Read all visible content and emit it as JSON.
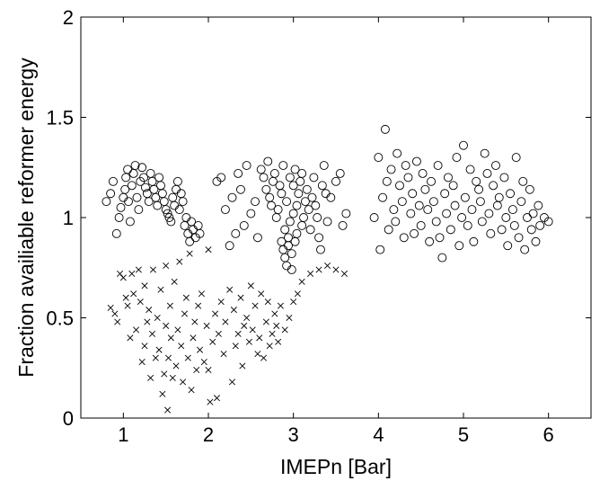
{
  "chart_data": {
    "type": "scatter",
    "title": "",
    "xlabel": "IMEPn [Bar]",
    "ylabel": "Fraction availiable reformer energy",
    "xlim": [
      0.5,
      6.5
    ],
    "ylim": [
      0,
      2
    ],
    "xticks": [
      1,
      2,
      3,
      4,
      5,
      6
    ],
    "yticks": [
      0,
      0.5,
      1,
      1.5,
      2
    ],
    "xtick_labels": [
      "1",
      "2",
      "3",
      "4",
      "5",
      "6"
    ],
    "ytick_labels": [
      "0",
      "0.5",
      "1",
      "1.5",
      "2"
    ],
    "grid": false,
    "legend": "none",
    "series": [
      {
        "marker": "circle",
        "points": [
          [
            0.8,
            1.08
          ],
          [
            0.85,
            1.12
          ],
          [
            0.88,
            1.18
          ],
          [
            0.92,
            0.92
          ],
          [
            0.95,
            1.0
          ],
          [
            0.97,
            1.05
          ],
          [
            1.0,
            1.1
          ],
          [
            1.02,
            1.14
          ],
          [
            1.03,
            1.2
          ],
          [
            1.05,
            1.24
          ],
          [
            1.06,
            1.08
          ],
          [
            1.08,
            0.98
          ],
          [
            1.1,
            1.16
          ],
          [
            1.12,
            1.22
          ],
          [
            1.14,
            1.26
          ],
          [
            1.16,
            1.1
          ],
          [
            1.18,
            1.04
          ],
          [
            1.2,
            1.18
          ],
          [
            1.22,
            1.25
          ],
          [
            1.24,
            1.2
          ],
          [
            1.26,
            1.15
          ],
          [
            1.28,
            1.12
          ],
          [
            1.3,
            1.08
          ],
          [
            1.32,
            1.22
          ],
          [
            1.34,
            1.18
          ],
          [
            1.36,
            1.14
          ],
          [
            1.38,
            1.1
          ],
          [
            1.4,
            1.06
          ],
          [
            1.42,
            1.2
          ],
          [
            1.44,
            1.16
          ],
          [
            1.46,
            1.12
          ],
          [
            1.48,
            1.08
          ],
          [
            1.5,
            1.04
          ],
          [
            1.52,
            1.02
          ],
          [
            1.54,
            1.0
          ],
          [
            1.56,
            0.98
          ],
          [
            1.58,
            1.1
          ],
          [
            1.6,
            1.06
          ],
          [
            1.62,
            1.14
          ],
          [
            1.64,
            1.18
          ],
          [
            1.66,
            1.04
          ],
          [
            1.68,
            1.12
          ],
          [
            1.7,
            1.08
          ],
          [
            1.72,
            0.96
          ],
          [
            1.74,
            1.0
          ],
          [
            1.76,
            0.92
          ],
          [
            1.78,
            0.88
          ],
          [
            1.8,
            0.98
          ],
          [
            1.82,
            0.94
          ],
          [
            1.85,
            0.9
          ],
          [
            1.88,
            0.96
          ],
          [
            1.9,
            0.92
          ],
          [
            2.1,
            1.18
          ],
          [
            2.15,
            1.2
          ],
          [
            2.2,
            1.04
          ],
          [
            2.25,
            0.86
          ],
          [
            2.28,
            1.1
          ],
          [
            2.32,
            0.92
          ],
          [
            2.35,
            1.22
          ],
          [
            2.38,
            1.14
          ],
          [
            2.42,
            0.96
          ],
          [
            2.45,
            1.26
          ],
          [
            2.5,
            1.02
          ],
          [
            2.55,
            1.08
          ],
          [
            2.58,
            0.9
          ],
          [
            2.62,
            1.24
          ],
          [
            2.65,
            1.2
          ],
          [
            2.68,
            1.14
          ],
          [
            2.7,
            1.28
          ],
          [
            2.72,
            1.1
          ],
          [
            2.74,
            1.06
          ],
          [
            2.76,
            1.18
          ],
          [
            2.78,
            1.22
          ],
          [
            2.8,
            1.0
          ],
          [
            2.82,
            1.04
          ],
          [
            2.84,
            1.16
          ],
          [
            2.86,
            1.12
          ],
          [
            2.86,
            0.88
          ],
          [
            2.88,
            0.84
          ],
          [
            2.88,
            1.26
          ],
          [
            2.9,
            0.8
          ],
          [
            2.9,
            0.94
          ],
          [
            2.92,
            0.76
          ],
          [
            2.92,
            1.08
          ],
          [
            2.94,
            0.86
          ],
          [
            2.94,
            0.9
          ],
          [
            2.96,
            1.2
          ],
          [
            2.96,
            0.98
          ],
          [
            2.98,
            0.74
          ],
          [
            2.98,
            0.82
          ],
          [
            3.0,
            1.16
          ],
          [
            3.0,
            1.02
          ],
          [
            3.02,
            0.88
          ],
          [
            3.02,
            1.24
          ],
          [
            3.04,
            1.06
          ],
          [
            3.04,
            0.92
          ],
          [
            3.06,
            1.12
          ],
          [
            3.08,
            1.18
          ],
          [
            3.1,
            1.22
          ],
          [
            3.1,
            0.96
          ],
          [
            3.12,
            1.0
          ],
          [
            3.14,
            1.08
          ],
          [
            3.16,
            1.14
          ],
          [
            3.18,
            1.04
          ],
          [
            3.2,
            0.94
          ],
          [
            3.22,
            1.1
          ],
          [
            3.24,
            1.2
          ],
          [
            3.26,
            1.06
          ],
          [
            3.28,
            1.0
          ],
          [
            3.3,
            0.9
          ],
          [
            3.32,
            0.84
          ],
          [
            3.34,
            1.16
          ],
          [
            3.36,
            1.26
          ],
          [
            3.38,
            1.12
          ],
          [
            3.4,
            0.98
          ],
          [
            3.44,
            1.1
          ],
          [
            3.5,
            1.18
          ],
          [
            3.55,
            1.22
          ],
          [
            3.58,
            0.96
          ],
          [
            3.62,
            1.02
          ],
          [
            3.95,
            1.0
          ],
          [
            4.0,
            1.3
          ],
          [
            4.02,
            0.84
          ],
          [
            4.05,
            1.1
          ],
          [
            4.08,
            1.44
          ],
          [
            4.1,
            1.18
          ],
          [
            4.12,
            0.94
          ],
          [
            4.15,
            1.24
          ],
          [
            4.18,
            1.04
          ],
          [
            4.2,
            0.98
          ],
          [
            4.22,
            1.32
          ],
          [
            4.25,
            1.16
          ],
          [
            4.28,
            1.08
          ],
          [
            4.3,
            0.9
          ],
          [
            4.32,
            1.26
          ],
          [
            4.35,
            1.2
          ],
          [
            4.38,
            1.02
          ],
          [
            4.4,
            1.12
          ],
          [
            4.42,
            0.92
          ],
          [
            4.45,
            1.28
          ],
          [
            4.48,
            1.06
          ],
          [
            4.5,
            0.96
          ],
          [
            4.52,
            1.22
          ],
          [
            4.55,
            1.14
          ],
          [
            4.58,
            1.04
          ],
          [
            4.6,
            0.88
          ],
          [
            4.62,
            1.18
          ],
          [
            4.65,
            1.08
          ],
          [
            4.68,
            0.98
          ],
          [
            4.7,
            1.26
          ],
          [
            4.72,
            0.9
          ],
          [
            4.75,
            0.8
          ],
          [
            4.78,
            1.12
          ],
          [
            4.8,
            1.02
          ],
          [
            4.82,
            1.2
          ],
          [
            4.85,
            0.94
          ],
          [
            4.88,
            1.16
          ],
          [
            4.9,
            1.06
          ],
          [
            4.92,
            1.3
          ],
          [
            4.95,
            0.86
          ],
          [
            4.98,
            1.0
          ],
          [
            5.0,
            1.36
          ],
          [
            5.02,
            1.1
          ],
          [
            5.05,
            0.96
          ],
          [
            5.08,
            1.24
          ],
          [
            5.1,
            1.04
          ],
          [
            5.12,
            0.88
          ],
          [
            5.15,
            1.18
          ],
          [
            5.18,
            1.14
          ],
          [
            5.2,
            1.08
          ],
          [
            5.22,
            0.98
          ],
          [
            5.25,
            1.32
          ],
          [
            5.28,
            1.22
          ],
          [
            5.3,
            1.02
          ],
          [
            5.32,
            0.92
          ],
          [
            5.35,
            1.16
          ],
          [
            5.38,
            1.26
          ],
          [
            5.4,
            1.06
          ],
          [
            5.42,
            1.1
          ],
          [
            5.45,
            0.94
          ],
          [
            5.48,
            1.2
          ],
          [
            5.5,
            1.0
          ],
          [
            5.52,
            0.86
          ],
          [
            5.55,
            1.12
          ],
          [
            5.58,
            1.04
          ],
          [
            5.6,
            0.96
          ],
          [
            5.62,
            1.3
          ],
          [
            5.65,
            0.9
          ],
          [
            5.68,
            1.08
          ],
          [
            5.7,
            1.18
          ],
          [
            5.72,
            0.84
          ],
          [
            5.75,
            1.0
          ],
          [
            5.78,
            1.14
          ],
          [
            5.8,
            0.94
          ],
          [
            5.82,
            1.02
          ],
          [
            5.85,
            0.88
          ],
          [
            5.88,
            1.06
          ],
          [
            5.9,
            0.96
          ],
          [
            5.95,
            1.0
          ],
          [
            6.0,
            0.98
          ]
        ]
      },
      {
        "marker": "x",
        "points": [
          [
            0.85,
            0.55
          ],
          [
            0.9,
            0.52
          ],
          [
            0.93,
            0.48
          ],
          [
            0.96,
            0.72
          ],
          [
            1.0,
            0.7
          ],
          [
            1.03,
            0.6
          ],
          [
            1.05,
            0.56
          ],
          [
            1.08,
            0.4
          ],
          [
            1.1,
            0.72
          ],
          [
            1.12,
            0.62
          ],
          [
            1.15,
            0.44
          ],
          [
            1.18,
            0.74
          ],
          [
            1.2,
            0.58
          ],
          [
            1.22,
            0.28
          ],
          [
            1.25,
            0.36
          ],
          [
            1.25,
            0.66
          ],
          [
            1.28,
            0.48
          ],
          [
            1.3,
            0.54
          ],
          [
            1.32,
            0.2
          ],
          [
            1.34,
            0.42
          ],
          [
            1.35,
            0.74
          ],
          [
            1.38,
            0.3
          ],
          [
            1.4,
            0.5
          ],
          [
            1.42,
            0.34
          ],
          [
            1.44,
            0.64
          ],
          [
            1.46,
            0.12
          ],
          [
            1.48,
            0.22
          ],
          [
            1.5,
            0.46
          ],
          [
            1.5,
            0.76
          ],
          [
            1.52,
            0.04
          ],
          [
            1.53,
            0.3
          ],
          [
            1.55,
            0.56
          ],
          [
            1.56,
            0.4
          ],
          [
            1.58,
            0.2
          ],
          [
            1.6,
            0.68
          ],
          [
            1.62,
            0.26
          ],
          [
            1.64,
            0.44
          ],
          [
            1.66,
            0.78
          ],
          [
            1.68,
            0.36
          ],
          [
            1.7,
            0.18
          ],
          [
            1.72,
            0.52
          ],
          [
            1.74,
            0.6
          ],
          [
            1.76,
            0.3
          ],
          [
            1.78,
            0.82
          ],
          [
            1.8,
            0.14
          ],
          [
            1.82,
            0.4
          ],
          [
            1.84,
            0.48
          ],
          [
            1.86,
            0.24
          ],
          [
            1.88,
            0.56
          ],
          [
            1.9,
            0.34
          ],
          [
            1.92,
            0.62
          ],
          [
            1.95,
            0.28
          ],
          [
            1.98,
            0.46
          ],
          [
            2.0,
            0.24
          ],
          [
            2.0,
            0.84
          ],
          [
            2.02,
            0.08
          ],
          [
            2.05,
            0.38
          ],
          [
            2.08,
            0.52
          ],
          [
            2.1,
            0.1
          ],
          [
            2.12,
            0.42
          ],
          [
            2.15,
            0.58
          ],
          [
            2.18,
            0.32
          ],
          [
            2.2,
            0.48
          ],
          [
            2.25,
            0.64
          ],
          [
            2.28,
            0.18
          ],
          [
            2.3,
            0.54
          ],
          [
            2.32,
            0.36
          ],
          [
            2.35,
            0.42
          ],
          [
            2.38,
            0.6
          ],
          [
            2.4,
            0.26
          ],
          [
            2.42,
            0.46
          ],
          [
            2.45,
            0.5
          ],
          [
            2.48,
            0.38
          ],
          [
            2.5,
            0.66
          ],
          [
            2.52,
            0.44
          ],
          [
            2.55,
            0.56
          ],
          [
            2.58,
            0.32
          ],
          [
            2.6,
            0.4
          ],
          [
            2.62,
            0.62
          ],
          [
            2.65,
            0.3
          ],
          [
            2.68,
            0.48
          ],
          [
            2.7,
            0.58
          ],
          [
            2.72,
            0.36
          ],
          [
            2.75,
            0.42
          ],
          [
            2.78,
            0.52
          ],
          [
            2.8,
            0.46
          ],
          [
            2.82,
            0.38
          ],
          [
            2.85,
            0.56
          ],
          [
            2.9,
            0.44
          ],
          [
            2.95,
            0.5
          ],
          [
            3.0,
            0.58
          ],
          [
            3.05,
            0.62
          ],
          [
            3.1,
            0.68
          ],
          [
            3.2,
            0.72
          ],
          [
            3.3,
            0.74
          ],
          [
            3.4,
            0.76
          ],
          [
            3.5,
            0.74
          ],
          [
            3.6,
            0.72
          ]
        ]
      }
    ]
  }
}
